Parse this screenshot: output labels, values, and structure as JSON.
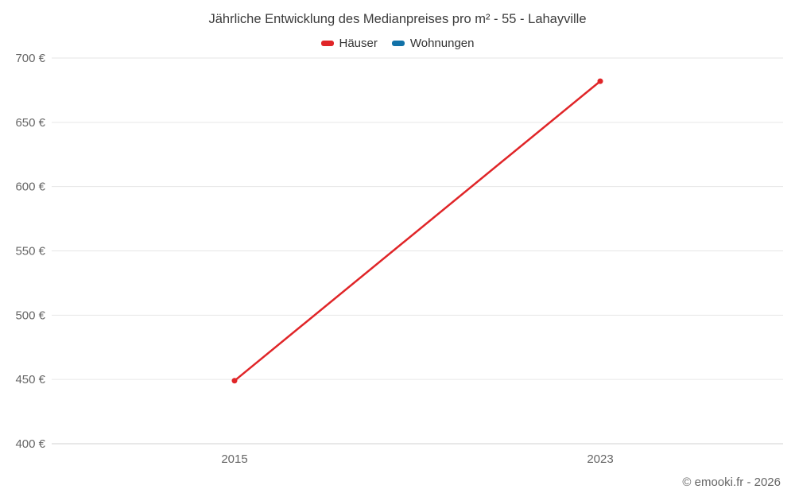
{
  "chart_data": {
    "type": "line",
    "title": "Jährliche Entwicklung des Medianpreises pro m² - 55 - Lahayville",
    "categories": [
      "2015",
      "2023"
    ],
    "series": [
      {
        "name": "Häuser",
        "color": "#e02528",
        "values": [
          449,
          682
        ]
      }
    ],
    "legend": [
      {
        "name": "Häuser",
        "color": "#e02528"
      },
      {
        "name": "Wohnungen",
        "color": "#1272a8"
      }
    ],
    "ylim": [
      400,
      700
    ],
    "ytick_step": 50,
    "ytick_suffix": " €",
    "grid": true,
    "legend_position": "top",
    "xlabel": "",
    "ylabel": ""
  },
  "colors": {
    "gridline": "#e6e6e6",
    "axis_line": "#d0d0d0",
    "tick_text": "#666666"
  },
  "footer": {
    "credit": "© emooki.fr - 2026"
  }
}
